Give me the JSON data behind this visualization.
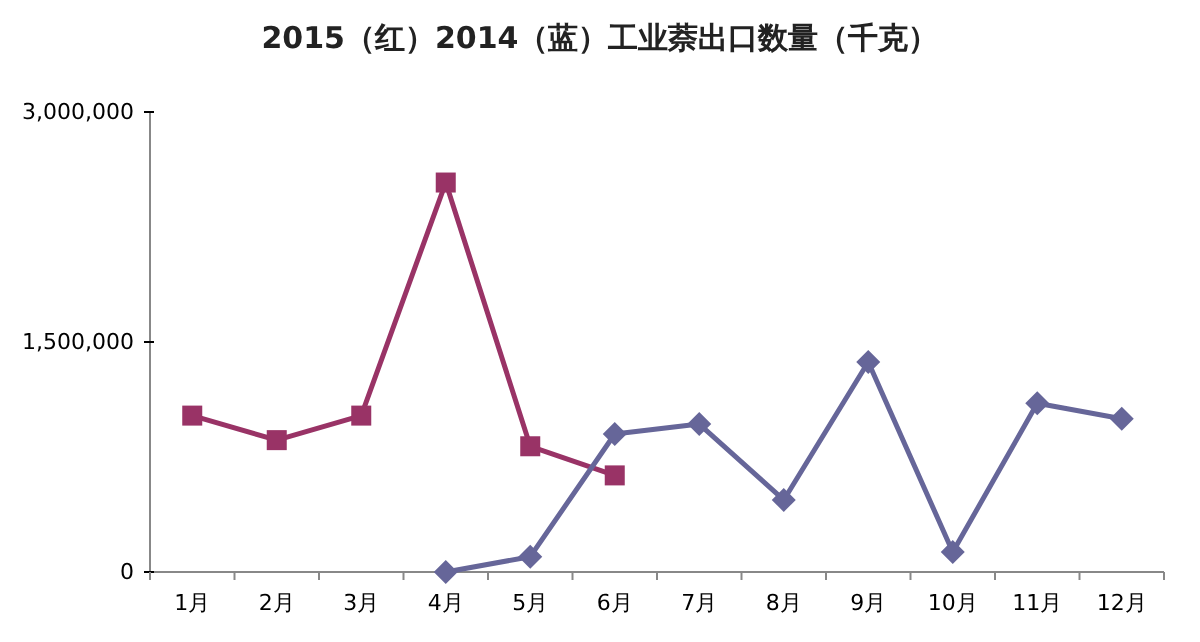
{
  "chart_data": {
    "type": "line",
    "title": "2015（红）2014（蓝）工业萘出口数量（千克）",
    "categories": [
      "1月",
      "2月",
      "3月",
      "4月",
      "5月",
      "6月",
      "7月",
      "8月",
      "9月",
      "10月",
      "11月",
      "12月"
    ],
    "series": [
      {
        "color": "#993366",
        "marker": "square",
        "values": [
          1020000,
          860000,
          1020000,
          2540000,
          820000,
          630000,
          null,
          null,
          null,
          null,
          null,
          null
        ]
      },
      {
        "color": "#666699",
        "marker": "diamond",
        "values": [
          null,
          null,
          null,
          0,
          100000,
          900000,
          965000,
          470000,
          1370000,
          130000,
          1100000,
          1000000
        ]
      }
    ],
    "ylim": [
      0,
      3000000
    ],
    "yticks": [
      {
        "value": 0,
        "label": "0"
      },
      {
        "value": 1500000,
        "label": "1,500,000"
      },
      {
        "value": 3000000,
        "label": "3,000,000"
      }
    ],
    "grid": false
  }
}
